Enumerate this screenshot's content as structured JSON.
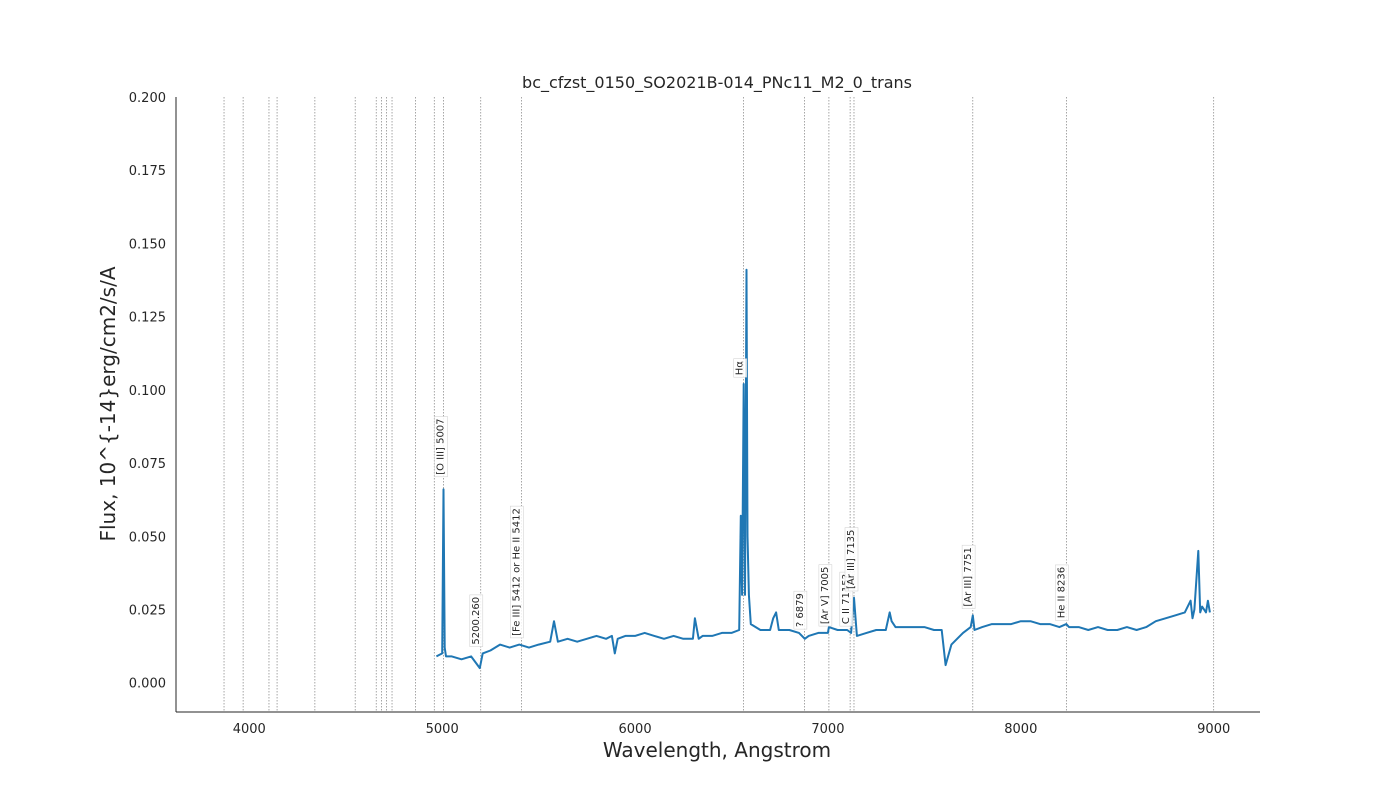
{
  "chart_data": {
    "type": "line",
    "title": "bc_cfzst_0150_SO2021B-014_PNc11_M2_0_trans",
    "xlabel": "Wavelength, Angstrom",
    "ylabel": "Flux, 10^{-14}erg/cm2/s/A",
    "xlim": [
      3620,
      9240
    ],
    "ylim": [
      -0.01,
      0.2
    ],
    "xticks": [
      4000,
      5000,
      6000,
      7000,
      8000,
      9000
    ],
    "yticks": [
      0.0,
      0.025,
      0.05,
      0.075,
      0.1,
      0.125,
      0.15,
      0.175,
      0.2
    ],
    "ytick_labels": [
      "0.000",
      "0.025",
      "0.050",
      "0.075",
      "0.100",
      "0.125",
      "0.150",
      "0.175",
      "0.200"
    ],
    "grid": false,
    "line_color": "#1f77b4",
    "series": [
      {
        "x": [
          4970,
          5000,
          5007,
          5013,
          5020,
          5050,
          5100,
          5150,
          5195,
          5210,
          5250,
          5300,
          5350,
          5400,
          5450,
          5500,
          5560,
          5580,
          5600,
          5650,
          5700,
          5750,
          5800,
          5850,
          5880,
          5895,
          5910,
          5950,
          6000,
          6050,
          6100,
          6150,
          6200,
          6250,
          6300,
          6310,
          6330,
          6350,
          6400,
          6450,
          6500,
          6540,
          6548,
          6555,
          6563,
          6570,
          6578,
          6583,
          6590,
          6600,
          6650,
          6700,
          6716,
          6731,
          6745,
          6800,
          6850,
          6880,
          6900,
          6950,
          7000,
          7005,
          7050,
          7100,
          7120,
          7135,
          7150,
          7200,
          7250,
          7300,
          7320,
          7330,
          7350,
          7400,
          7450,
          7500,
          7550,
          7590,
          7610,
          7640,
          7700,
          7740,
          7751,
          7760,
          7800,
          7850,
          7900,
          7950,
          8000,
          8050,
          8100,
          8150,
          8200,
          8236,
          8250,
          8300,
          8350,
          8400,
          8450,
          8500,
          8550,
          8600,
          8650,
          8700,
          8750,
          8800,
          8850,
          8880,
          8890,
          8900,
          8920,
          8930,
          8940,
          8960,
          8970,
          8980
        ],
        "y": [
          0.009,
          0.01,
          0.066,
          0.012,
          0.009,
          0.009,
          0.008,
          0.009,
          0.005,
          0.01,
          0.011,
          0.013,
          0.012,
          0.013,
          0.012,
          0.013,
          0.014,
          0.021,
          0.014,
          0.015,
          0.014,
          0.015,
          0.016,
          0.015,
          0.016,
          0.01,
          0.015,
          0.016,
          0.016,
          0.017,
          0.016,
          0.015,
          0.016,
          0.015,
          0.015,
          0.022,
          0.015,
          0.016,
          0.016,
          0.017,
          0.017,
          0.018,
          0.057,
          0.03,
          0.102,
          0.03,
          0.141,
          0.05,
          0.03,
          0.02,
          0.018,
          0.018,
          0.022,
          0.024,
          0.018,
          0.018,
          0.017,
          0.015,
          0.016,
          0.017,
          0.017,
          0.019,
          0.018,
          0.018,
          0.017,
          0.029,
          0.016,
          0.017,
          0.018,
          0.018,
          0.024,
          0.021,
          0.019,
          0.019,
          0.019,
          0.019,
          0.018,
          0.018,
          0.006,
          0.013,
          0.017,
          0.019,
          0.023,
          0.018,
          0.019,
          0.02,
          0.02,
          0.02,
          0.021,
          0.021,
          0.02,
          0.02,
          0.019,
          0.02,
          0.019,
          0.019,
          0.018,
          0.019,
          0.018,
          0.018,
          0.019,
          0.018,
          0.019,
          0.021,
          0.022,
          0.023,
          0.024,
          0.028,
          0.022,
          0.025,
          0.045,
          0.024,
          0.026,
          0.024,
          0.028,
          0.024
        ]
      }
    ],
    "reference_lines": [
      3869,
      3968,
      4102,
      4144,
      4340,
      4549,
      4658,
      4686,
      4711,
      4740,
      4861,
      4959,
      5007,
      5200,
      5412,
      6563,
      6879,
      7005,
      7115,
      7135,
      7751,
      8236,
      9000
    ],
    "line_color_ref": "#808080",
    "annotations": [
      {
        "x": 5007,
        "y": 0.071,
        "text": "[O III] 5007"
      },
      {
        "x": 5190,
        "y": 0.013,
        "text": "5200.260"
      },
      {
        "x": 5400,
        "y": 0.016,
        "text": "[Fe III] 5412 or He II 5412"
      },
      {
        "x": 6558,
        "y": 0.105,
        "text": "Hα"
      },
      {
        "x": 6870,
        "y": 0.019,
        "text": "? 6879"
      },
      {
        "x": 7000,
        "y": 0.02,
        "text": "[Ar V] 7005"
      },
      {
        "x": 7108,
        "y": 0.02,
        "text": "C II 7115?"
      },
      {
        "x": 7135,
        "y": 0.032,
        "text": "[Ar III] 7135"
      },
      {
        "x": 7742,
        "y": 0.026,
        "text": "[Ar III] 7751"
      },
      {
        "x": 8226,
        "y": 0.022,
        "text": "He II 8236"
      }
    ]
  }
}
